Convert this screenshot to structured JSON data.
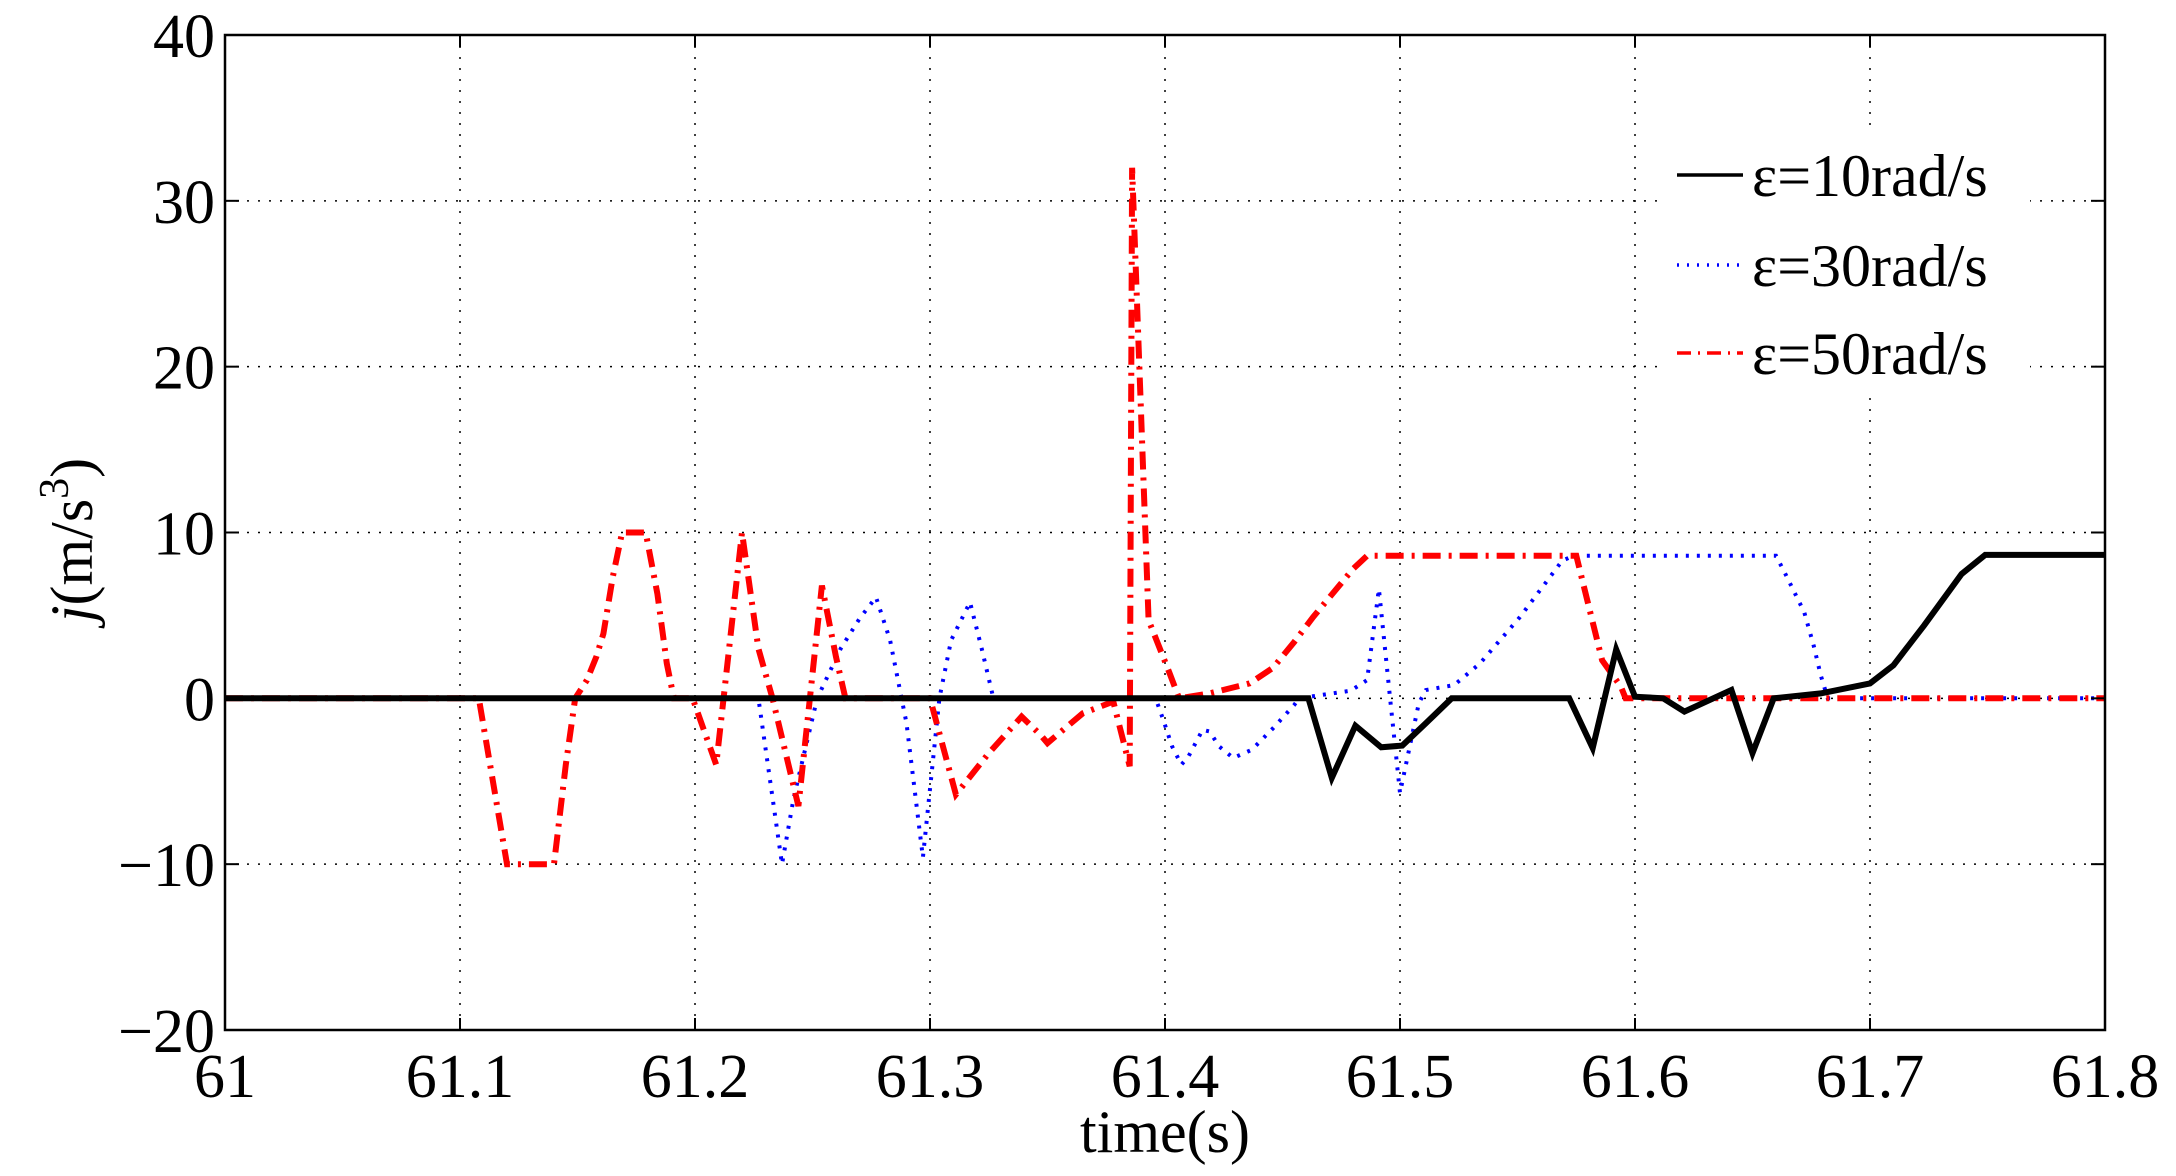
{
  "chart_data": {
    "type": "line",
    "title": "",
    "xlabel": "time(s)",
    "ylabel": "j(m/s^3)",
    "ylabel_parts": {
      "italic": "j",
      "prefix": "(m/s",
      "sup": "3",
      "suffix": ")"
    },
    "xlim": [
      61,
      61.8
    ],
    "ylim": [
      -20,
      40
    ],
    "xticks": [
      61,
      61.1,
      61.2,
      61.3,
      61.4,
      61.5,
      61.6,
      61.7,
      61.8
    ],
    "xtick_labels": [
      "61",
      "61.1",
      "61.2",
      "61.3",
      "61.4",
      "61.5",
      "61.6",
      "61.7",
      "61.8"
    ],
    "yticks": [
      -20,
      -10,
      0,
      10,
      20,
      30,
      40
    ],
    "ytick_labels": [
      "−20",
      "−10",
      "0",
      "10",
      "20",
      "30",
      "40"
    ],
    "grid": true,
    "grid_style": "dotted",
    "legend_position": "upper right",
    "series": [
      {
        "name": "ε=10rad/s",
        "color": "#000000",
        "line_style": "solid",
        "x": [
          61.0,
          61.461,
          61.471,
          61.481,
          61.492,
          61.501,
          61.511,
          61.522,
          61.572,
          61.582,
          61.592,
          61.6,
          61.612,
          61.621,
          61.641,
          61.65,
          61.659,
          61.679,
          61.7,
          61.71,
          61.723,
          61.739,
          61.749,
          61.8
        ],
        "y": [
          0,
          0,
          -4.8,
          -1.65,
          -2.95,
          -2.85,
          -1.5,
          0,
          0,
          -3.0,
          2.95,
          0.1,
          0,
          -0.8,
          0.5,
          -3.3,
          0,
          0.3,
          0.9,
          2.0,
          4.4,
          7.5,
          8.65,
          8.65
        ]
      },
      {
        "name": "ε=30rad/s",
        "color": "#0000ff",
        "line_style": "dotted",
        "x": [
          61.0,
          61.227,
          61.232,
          61.237,
          61.242,
          61.252,
          61.262,
          61.27,
          61.277,
          61.283,
          61.29,
          61.297,
          61.304,
          61.309,
          61.317,
          61.322,
          61.327,
          61.396,
          61.399,
          61.403,
          61.407,
          61.41,
          61.416,
          61.419,
          61.423,
          61.429,
          61.437,
          61.446,
          61.455,
          61.457,
          61.479,
          61.486,
          61.491,
          61.496,
          61.5,
          61.508,
          61.511,
          61.523,
          61.534,
          61.551,
          61.569,
          61.574,
          61.66,
          61.664,
          61.672,
          61.676,
          61.679,
          61.682,
          61.8
        ],
        "y": [
          0,
          0,
          -5.0,
          -10.0,
          -6.0,
          0,
          3.0,
          4.8,
          6.1,
          3.5,
          -1.5,
          -9.6,
          0,
          3.5,
          5.8,
          3.0,
          0,
          0,
          -1.2,
          -2.9,
          -4.0,
          -3.5,
          -1.9,
          -2.0,
          -2.9,
          -3.6,
          -3.1,
          -1.8,
          -0.4,
          0,
          0.46,
          1.1,
          6.6,
          -0.3,
          -5.7,
          -0.3,
          0.5,
          0.8,
          2.1,
          4.9,
          8.3,
          8.6,
          8.6,
          7.5,
          5.2,
          3.2,
          1.4,
          0,
          0
        ]
      },
      {
        "name": "ε=50rad/s",
        "color": "#ff0000",
        "line_style": "dash-dot",
        "x": [
          61.0,
          61.108,
          61.12,
          61.14,
          61.145,
          61.149,
          61.154,
          61.158,
          61.161,
          61.165,
          61.169,
          61.179,
          61.184,
          61.188,
          61.191,
          61.199,
          61.209,
          61.22,
          61.227,
          61.233,
          61.244,
          61.254,
          61.26,
          61.264,
          61.3,
          61.311,
          61.325,
          61.339,
          61.347,
          61.35,
          61.365,
          61.378,
          61.385,
          61.386,
          61.393,
          61.395,
          61.402,
          61.406,
          61.419,
          61.436,
          61.446,
          61.455,
          61.463,
          61.48,
          61.486,
          61.575,
          61.579,
          61.586,
          61.594,
          61.596,
          61.8
        ],
        "y": [
          0,
          0,
          -10,
          -10,
          -4,
          0,
          1.1,
          2.5,
          3.9,
          7.3,
          10,
          10,
          6.3,
          2.1,
          0,
          0,
          -4,
          10,
          3.0,
          0,
          -6.5,
          6.8,
          2.5,
          0,
          0,
          -5.8,
          -3.3,
          -1.1,
          -2.2,
          -2.7,
          -0.9,
          -0.2,
          -4.1,
          32,
          4.7,
          4.0,
          1.5,
          0,
          0.3,
          0.9,
          1.85,
          3.4,
          4.9,
          7.8,
          8.6,
          8.6,
          6.3,
          2.3,
          0.7,
          0,
          0
        ]
      }
    ]
  }
}
